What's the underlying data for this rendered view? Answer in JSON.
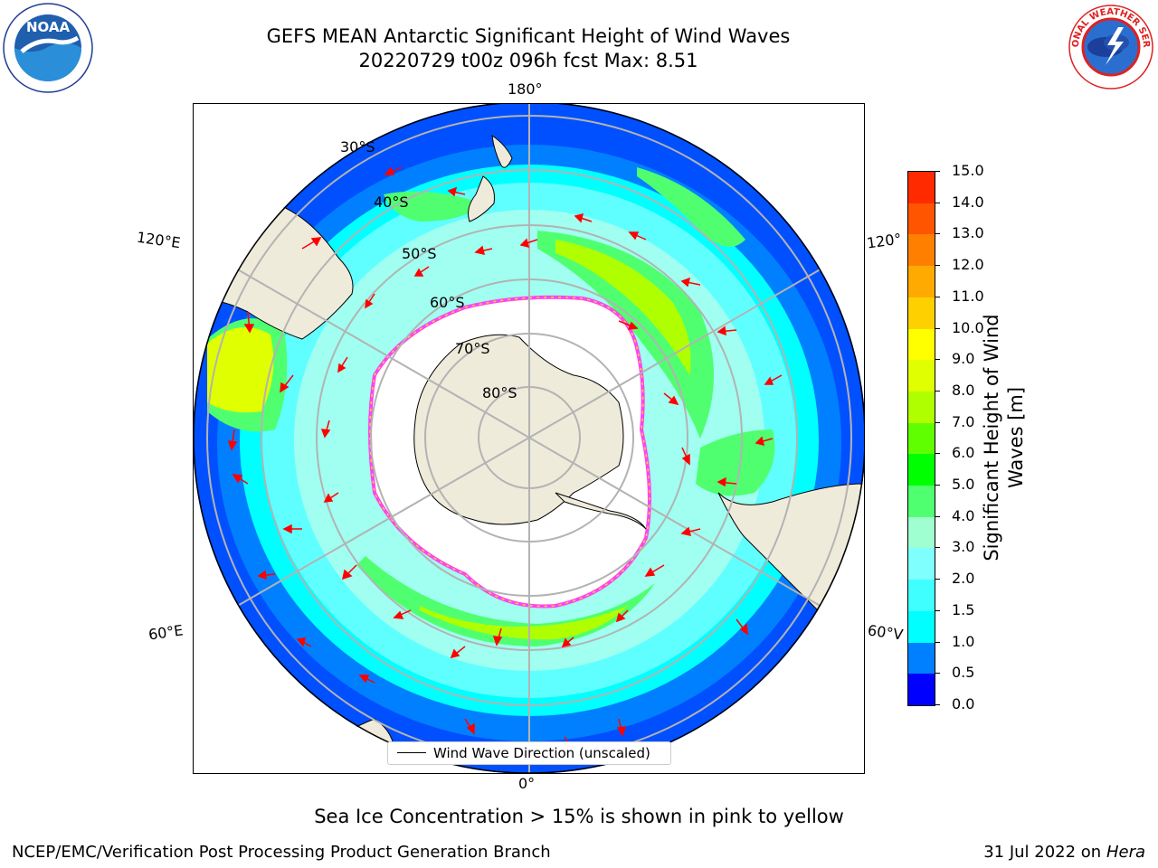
{
  "title": {
    "line1": "GEFS MEAN Antarctic Significant Height of Wind Waves",
    "line2": "20220729 t00z 096h fcst   Max: 8.51"
  },
  "logos": {
    "left": "NOAA",
    "left_ring": "NATIONAL OCEANIC AND ATMOSPHERIC ADMINISTRATION · U.S. DEPARTMENT OF COMMERCE",
    "right_ring": "NATIONAL WEATHER SERVICE"
  },
  "map": {
    "longitude_labels": {
      "top": "180°",
      "bottom": "0°",
      "upper_left": "120°E",
      "upper_right": "120°",
      "lower_left": "60°E",
      "lower_right": "60°V"
    },
    "latitude_labels": [
      "30°S",
      "40°S",
      "50°S",
      "60°S",
      "70°S",
      "80°S"
    ],
    "legend_label": "Wind Wave Direction (unscaled)",
    "colors": {
      "land": "#efebdb",
      "ice_edge_pink": "#ff44ee",
      "ice_edge_yellow": "#ffcc44",
      "arrow": "#ff0000",
      "grid": "#b3b3b3"
    }
  },
  "colorbar": {
    "title_line1": "Significant Height of Wind",
    "title_line2": "Waves [m]",
    "ticks": [
      "15.0",
      "14.0",
      "13.0",
      "12.0",
      "11.0",
      "10.0",
      "9.0",
      "8.0",
      "7.0",
      "6.0",
      "5.0",
      "4.0",
      "3.0",
      "2.0",
      "1.5",
      "1.0",
      "0.5",
      "0.0"
    ],
    "colors_bottom_to_top": [
      "#0000ff",
      "#0080ff",
      "#00ffff",
      "#40ffff",
      "#80ffff",
      "#a0ffd0",
      "#50ff70",
      "#00ff00",
      "#60ff00",
      "#b0ff00",
      "#e0ff00",
      "#ffff00",
      "#ffd000",
      "#ffaa00",
      "#ff8000",
      "#ff5500",
      "#ff2a00"
    ]
  },
  "subtitle": "Sea Ice Concentration > 15% is shown in pink to yellow",
  "footer": {
    "left": "NCEP/EMC/Verification Post Processing Product Generation Branch",
    "right_prefix": "31 Jul 2022 on ",
    "right_italic": "Hera"
  }
}
